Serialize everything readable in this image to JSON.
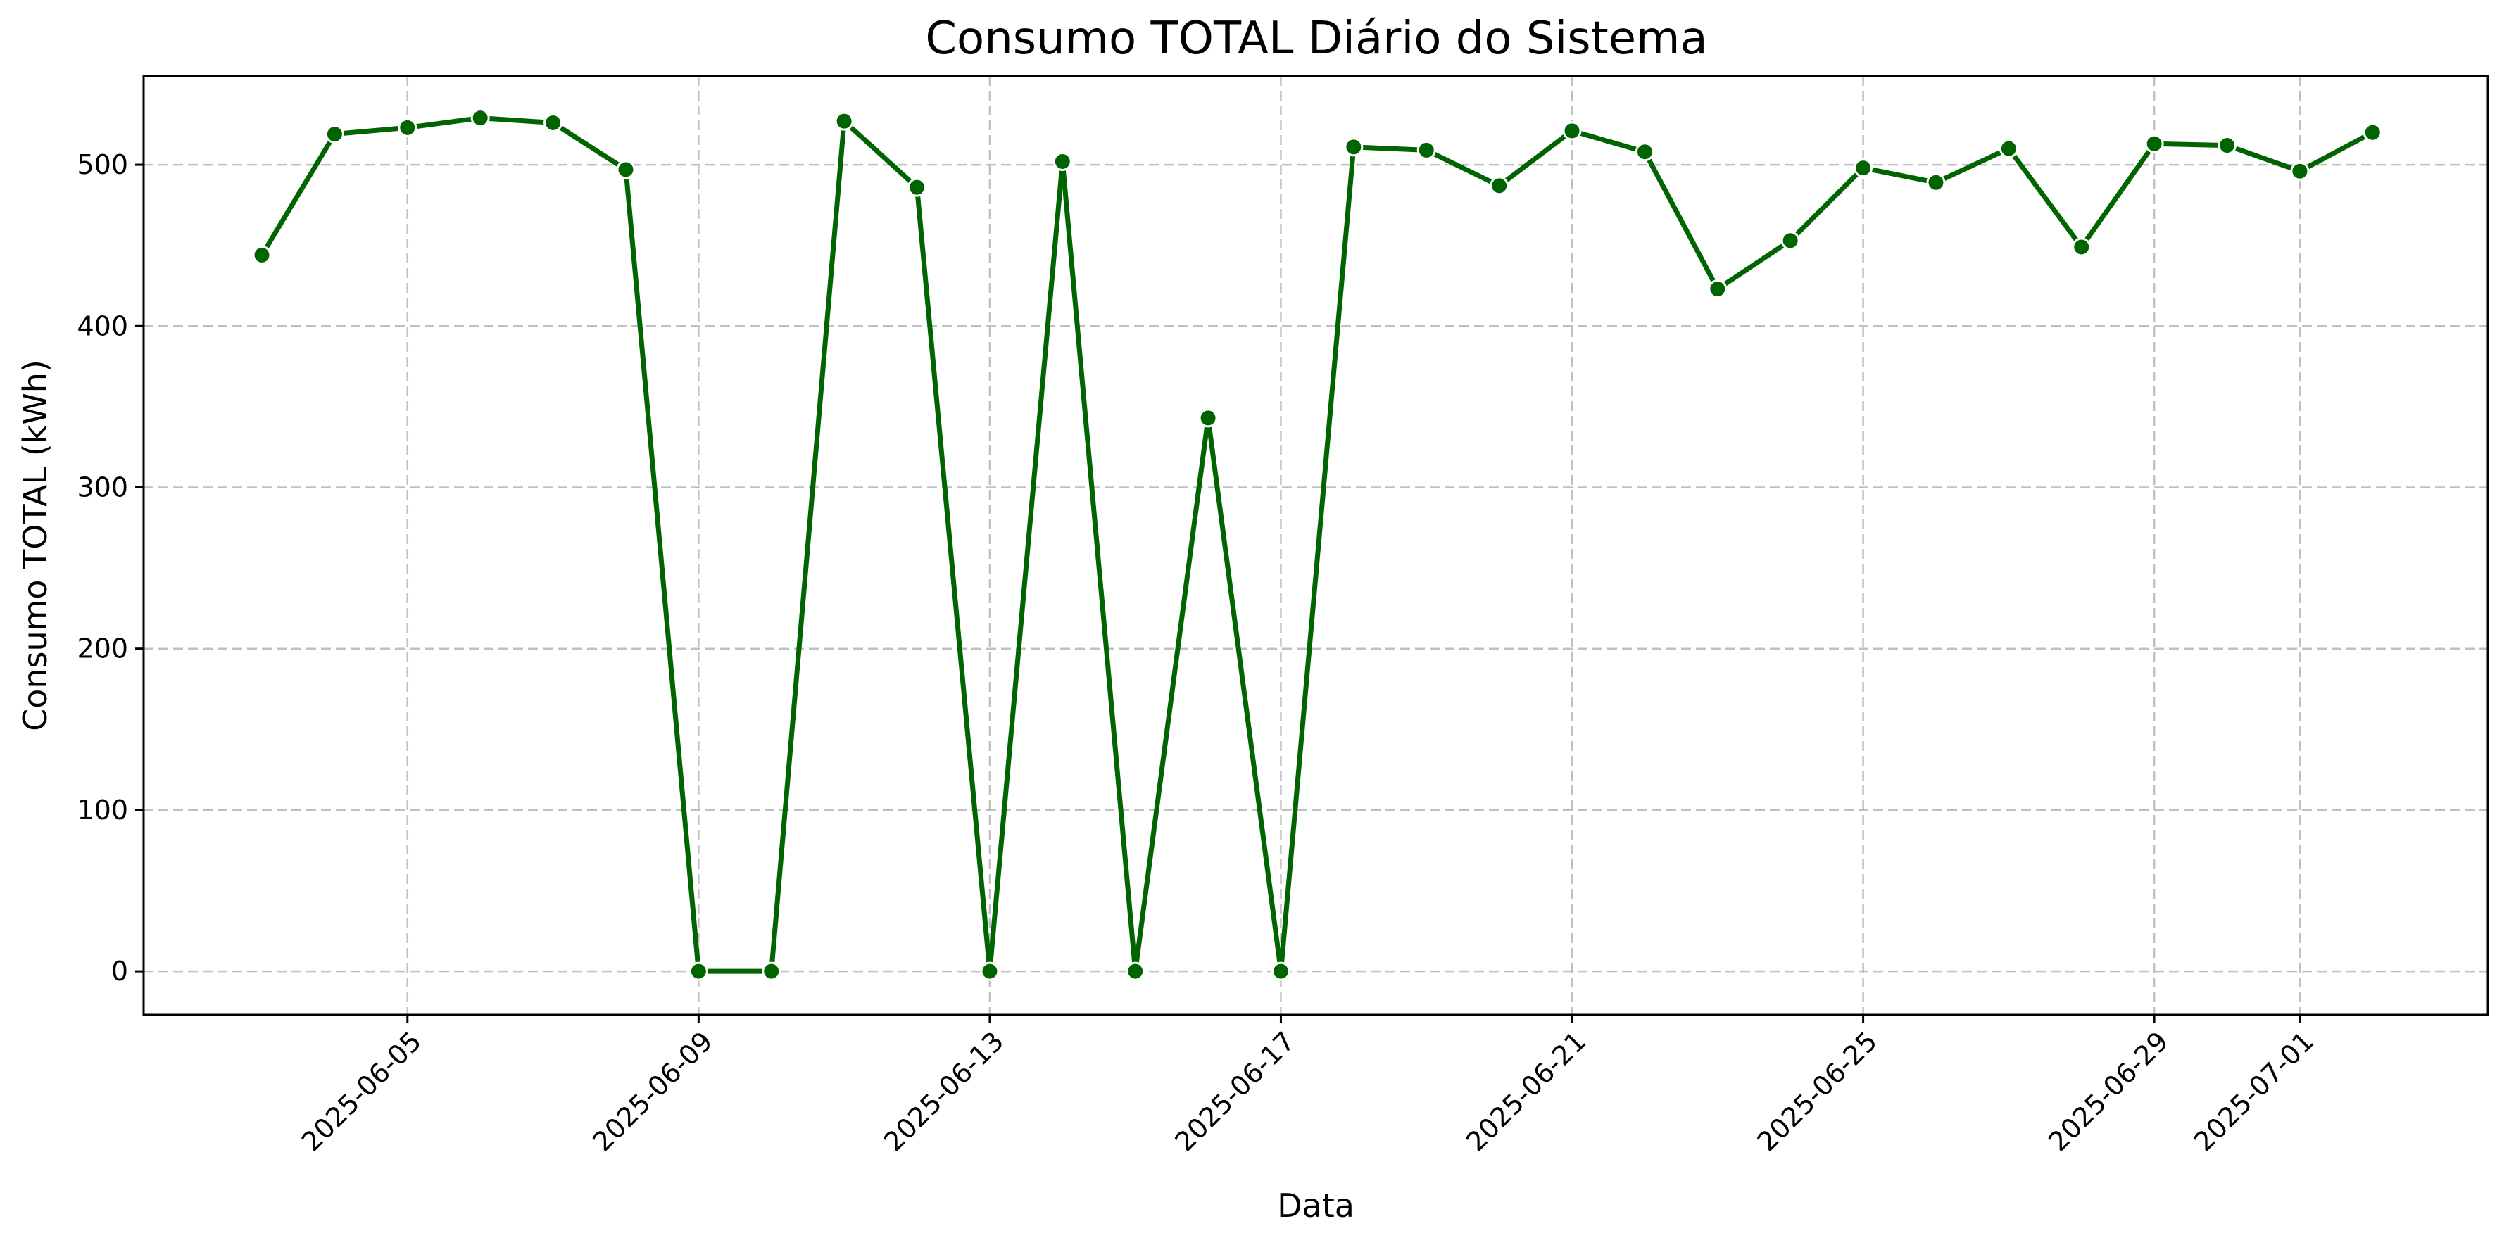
{
  "chart_data": {
    "type": "line",
    "title": "Consumo TOTAL Diário do Sistema",
    "xlabel": "Data",
    "ylabel": "Consumo TOTAL (kWh)",
    "line_color": "#006400",
    "marker_color": "#006400",
    "grid": true,
    "ylim": [
      -27,
      555
    ],
    "xlim": [
      "2025-06-01T09:00",
      "2025-07-03T14:00"
    ],
    "x_ticks": [
      "2025-06-05",
      "2025-06-09",
      "2025-06-13",
      "2025-06-17",
      "2025-06-21",
      "2025-06-25",
      "2025-06-29",
      "2025-07-01"
    ],
    "y_ticks": [
      0,
      100,
      200,
      300,
      400,
      500
    ],
    "series": [
      {
        "x": [
          "2025-06-03",
          "2025-06-04",
          "2025-06-05",
          "2025-06-06",
          "2025-06-07",
          "2025-06-08",
          "2025-06-09",
          "2025-06-10",
          "2025-06-11",
          "2025-06-12",
          "2025-06-13",
          "2025-06-14",
          "2025-06-15",
          "2025-06-16",
          "2025-06-17",
          "2025-06-18",
          "2025-06-19",
          "2025-06-20",
          "2025-06-21",
          "2025-06-22",
          "2025-06-23",
          "2025-06-24",
          "2025-06-25",
          "2025-06-26",
          "2025-06-27",
          "2025-06-28",
          "2025-06-29",
          "2025-06-30",
          "2025-07-01",
          "2025-07-02"
        ],
        "values": [
          444,
          519,
          523,
          529,
          526,
          497,
          0,
          0,
          527,
          486,
          0,
          502,
          0,
          343,
          0,
          511,
          509,
          487,
          521,
          508,
          423,
          453,
          498,
          489,
          510,
          449,
          513,
          512,
          496,
          520
        ]
      }
    ]
  }
}
